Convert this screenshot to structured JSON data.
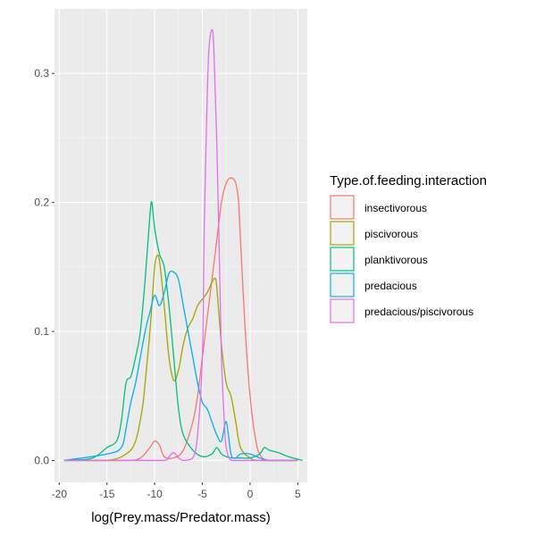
{
  "chart_data": {
    "type": "density",
    "xlabel": "log(Prey.mass/Predator.mass)",
    "ylabel": "",
    "xlim": [
      -20.5,
      6
    ],
    "ylim": [
      -0.017,
      0.35
    ],
    "x_ticks": [
      -20,
      -15,
      -10,
      -5,
      0,
      5
    ],
    "x_tick_labels": [
      "-20",
      "-15",
      "-10",
      "-5",
      "0",
      "5"
    ],
    "y_ticks": [
      0.0,
      0.1,
      0.2,
      0.3
    ],
    "y_tick_labels": [
      "0.0",
      "0.1",
      "0.2",
      "0.3"
    ],
    "grid": true,
    "background": "#ebebeb",
    "legend": {
      "title": "Type.of.feeding.interaction",
      "position": "right"
    },
    "series": [
      {
        "name": "insectivorous",
        "color": "#F8766D",
        "x": [
          -19.5,
          -13,
          -11.5,
          -10.5,
          -10,
          -9.5,
          -9,
          -8,
          -7,
          -6,
          -5.5,
          -5,
          -4.5,
          -4,
          -3.5,
          -3,
          -2.5,
          -2,
          -1.5,
          -1.2,
          -1,
          -0.5,
          0,
          0.5,
          1,
          2,
          5
        ],
        "y": [
          0,
          0,
          0.002,
          0.01,
          0.015,
          0.012,
          0.003,
          0.002,
          0.008,
          0.03,
          0.05,
          0.08,
          0.11,
          0.14,
          0.17,
          0.2,
          0.215,
          0.219,
          0.215,
          0.2,
          0.17,
          0.1,
          0.05,
          0.02,
          0.005,
          0,
          0
        ]
      },
      {
        "name": "piscivorous",
        "color": "#A3A500",
        "x": [
          -19.5,
          -15,
          -13,
          -12,
          -11.3,
          -11,
          -10.5,
          -10.2,
          -10,
          -9.8,
          -9.5,
          -9,
          -8.5,
          -8,
          -7.5,
          -7,
          -6.5,
          -6,
          -5.5,
          -5,
          -4.5,
          -4,
          -3.7,
          -3.5,
          -3,
          -2.5,
          -2,
          -1.5,
          -1,
          0,
          1,
          5
        ],
        "y": [
          0,
          0,
          0.005,
          0.015,
          0.04,
          0.06,
          0.1,
          0.13,
          0.15,
          0.158,
          0.155,
          0.12,
          0.08,
          0.062,
          0.07,
          0.09,
          0.103,
          0.11,
          0.12,
          0.125,
          0.13,
          0.138,
          0.141,
          0.135,
          0.09,
          0.06,
          0.05,
          0.03,
          0.01,
          0.002,
          0,
          0
        ]
      },
      {
        "name": "planktivorous",
        "color": "#00BF7D",
        "x": [
          -19.5,
          -17,
          -16,
          -15,
          -14,
          -13.5,
          -13,
          -12.5,
          -12,
          -11.5,
          -11,
          -10.5,
          -10.3,
          -10,
          -9.5,
          -9,
          -8.5,
          -8,
          -7.5,
          -7,
          -6,
          -5,
          -4,
          -3.5,
          -3,
          -2.5,
          -2,
          -1,
          0,
          1,
          1.5,
          2,
          3,
          4,
          5.5
        ],
        "y": [
          0,
          0.001,
          0.004,
          0.01,
          0.015,
          0.03,
          0.06,
          0.065,
          0.08,
          0.1,
          0.14,
          0.19,
          0.2,
          0.18,
          0.16,
          0.15,
          0.12,
          0.08,
          0.04,
          0.02,
          0.008,
          0.003,
          0.005,
          0.01,
          0.005,
          0.003,
          0.002,
          0.002,
          0.002,
          0.005,
          0.01,
          0.008,
          0.006,
          0.003,
          0
        ]
      },
      {
        "name": "predacious",
        "color": "#00B0F6",
        "x": [
          -19.5,
          -15,
          -13.5,
          -13,
          -12.5,
          -12,
          -11.5,
          -11,
          -10.5,
          -10,
          -9.5,
          -9,
          -8.5,
          -8,
          -7.5,
          -7,
          -6.5,
          -6,
          -5.5,
          -5,
          -4.5,
          -4,
          -3.5,
          -3,
          -2.5,
          -2,
          -1.5,
          -1,
          0,
          1,
          2,
          5
        ],
        "y": [
          0,
          0.005,
          0.01,
          0.025,
          0.045,
          0.06,
          0.08,
          0.1,
          0.115,
          0.128,
          0.12,
          0.13,
          0.145,
          0.146,
          0.14,
          0.12,
          0.1,
          0.08,
          0.06,
          0.045,
          0.04,
          0.03,
          0.02,
          0.015,
          0.03,
          0.005,
          0.002,
          0.005,
          0.005,
          0.002,
          0,
          0
        ]
      },
      {
        "name": "predacious/piscivorous",
        "color": "#E76BF3",
        "x": [
          -19.5,
          -12,
          -9,
          -8.5,
          -8,
          -7.5,
          -7,
          -6,
          -5.5,
          -5,
          -4.8,
          -4.5,
          -4.3,
          -4,
          -3.8,
          -3.5,
          -3.2,
          -3,
          -2.7,
          -2.5,
          -2,
          -1,
          5
        ],
        "y": [
          0,
          0,
          0,
          0.003,
          0.006,
          0.002,
          0,
          0.002,
          0.02,
          0.08,
          0.18,
          0.28,
          0.32,
          0.334,
          0.32,
          0.25,
          0.15,
          0.08,
          0.03,
          0.01,
          0,
          0,
          0
        ]
      }
    ]
  }
}
